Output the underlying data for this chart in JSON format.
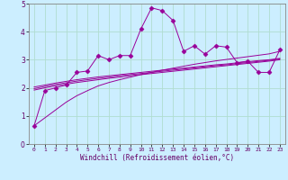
{
  "xlabel": "Windchill (Refroidissement éolien,°C)",
  "bg_color": "#cceeff",
  "grid_color": "#aaddcc",
  "line_color": "#990099",
  "x_values": [
    0,
    1,
    2,
    3,
    4,
    5,
    6,
    7,
    8,
    9,
    10,
    11,
    12,
    13,
    14,
    15,
    16,
    17,
    18,
    19,
    20,
    21,
    22,
    23
  ],
  "xlim": [
    -0.5,
    23.5
  ],
  "ylim": [
    0,
    5
  ],
  "yticks": [
    0,
    1,
    2,
    3,
    4,
    5
  ],
  "xticks": [
    0,
    1,
    2,
    3,
    4,
    5,
    6,
    7,
    8,
    9,
    10,
    11,
    12,
    13,
    14,
    15,
    16,
    17,
    18,
    19,
    20,
    21,
    22,
    23
  ],
  "series_markers": [
    0.65,
    1.9,
    2.0,
    2.1,
    2.55,
    2.6,
    3.15,
    3.0,
    3.15,
    3.15,
    4.1,
    4.85,
    4.75,
    4.4,
    3.3,
    3.5,
    3.2,
    3.5,
    3.45,
    2.9,
    2.95,
    2.55,
    2.55,
    3.35
  ],
  "regression_lines": [
    [
      0.65,
      0.93,
      1.21,
      1.49,
      1.72,
      1.9,
      2.07,
      2.19,
      2.29,
      2.38,
      2.47,
      2.55,
      2.63,
      2.7,
      2.77,
      2.84,
      2.9,
      2.96,
      3.01,
      3.06,
      3.11,
      3.16,
      3.21,
      3.3
    ],
    [
      1.92,
      2.0,
      2.07,
      2.13,
      2.19,
      2.24,
      2.29,
      2.34,
      2.38,
      2.43,
      2.47,
      2.51,
      2.55,
      2.59,
      2.63,
      2.67,
      2.71,
      2.75,
      2.79,
      2.83,
      2.87,
      2.91,
      2.95,
      3.0
    ],
    [
      1.97,
      2.05,
      2.12,
      2.18,
      2.24,
      2.29,
      2.34,
      2.38,
      2.43,
      2.47,
      2.51,
      2.55,
      2.59,
      2.63,
      2.67,
      2.71,
      2.75,
      2.79,
      2.82,
      2.86,
      2.9,
      2.94,
      2.98,
      3.03
    ],
    [
      2.03,
      2.1,
      2.17,
      2.23,
      2.29,
      2.34,
      2.39,
      2.43,
      2.47,
      2.51,
      2.55,
      2.59,
      2.63,
      2.67,
      2.7,
      2.74,
      2.78,
      2.82,
      2.85,
      2.89,
      2.93,
      2.97,
      3.0,
      3.05
    ]
  ]
}
